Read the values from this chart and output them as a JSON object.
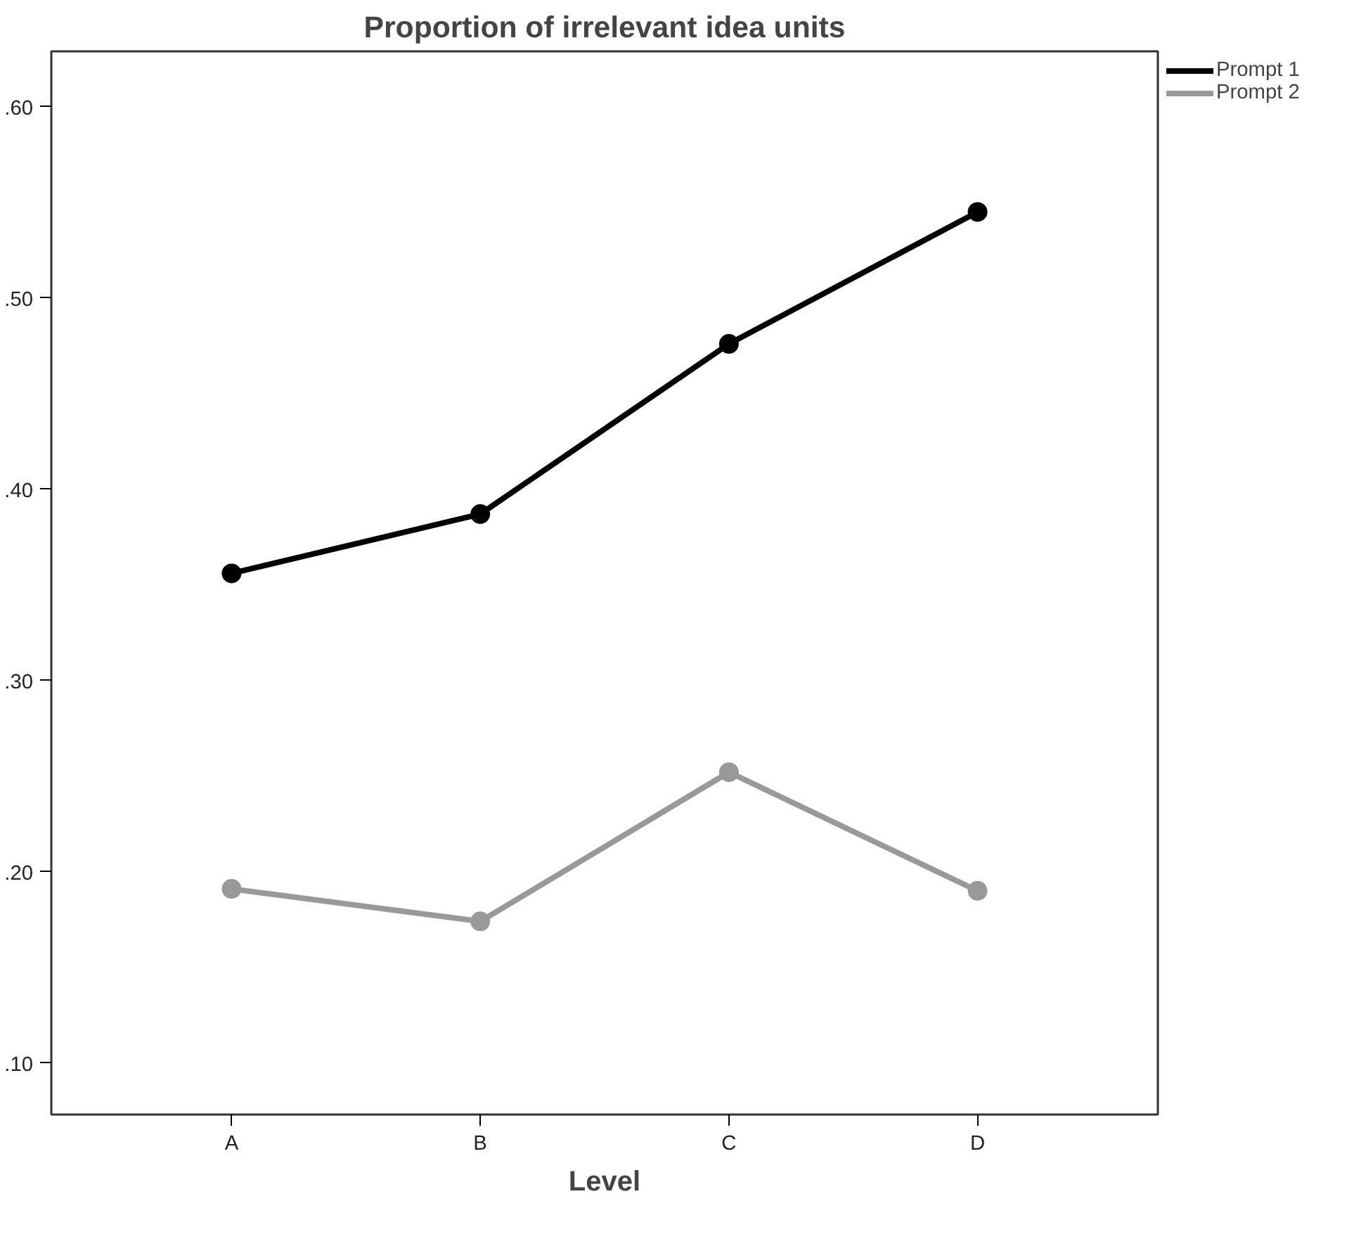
{
  "chart_data": {
    "type": "line",
    "title": "Proportion of irrelevant idea units",
    "xlabel": "Level",
    "categories": [
      "A",
      "B",
      "C",
      "D"
    ],
    "series": [
      {
        "name": "Prompt 1",
        "color": "#000000",
        "values": [
          0.356,
          0.387,
          0.476,
          0.545
        ]
      },
      {
        "name": "Prompt 2",
        "color": "#999999",
        "values": [
          0.191,
          0.174,
          0.252,
          0.19
        ]
      }
    ],
    "ylim": [
      0.073,
      0.629
    ],
    "yticks": [
      {
        "value": 0.1,
        "label": ".10"
      },
      {
        "value": 0.2,
        "label": ".20"
      },
      {
        "value": 0.3,
        "label": ".30"
      },
      {
        "value": 0.4,
        "label": ".40"
      },
      {
        "value": 0.5,
        "label": ".50"
      },
      {
        "value": 0.6,
        "label": ".60"
      }
    ],
    "grid": false,
    "legend": "top right",
    "marker": "circle",
    "line_style": "solid"
  }
}
